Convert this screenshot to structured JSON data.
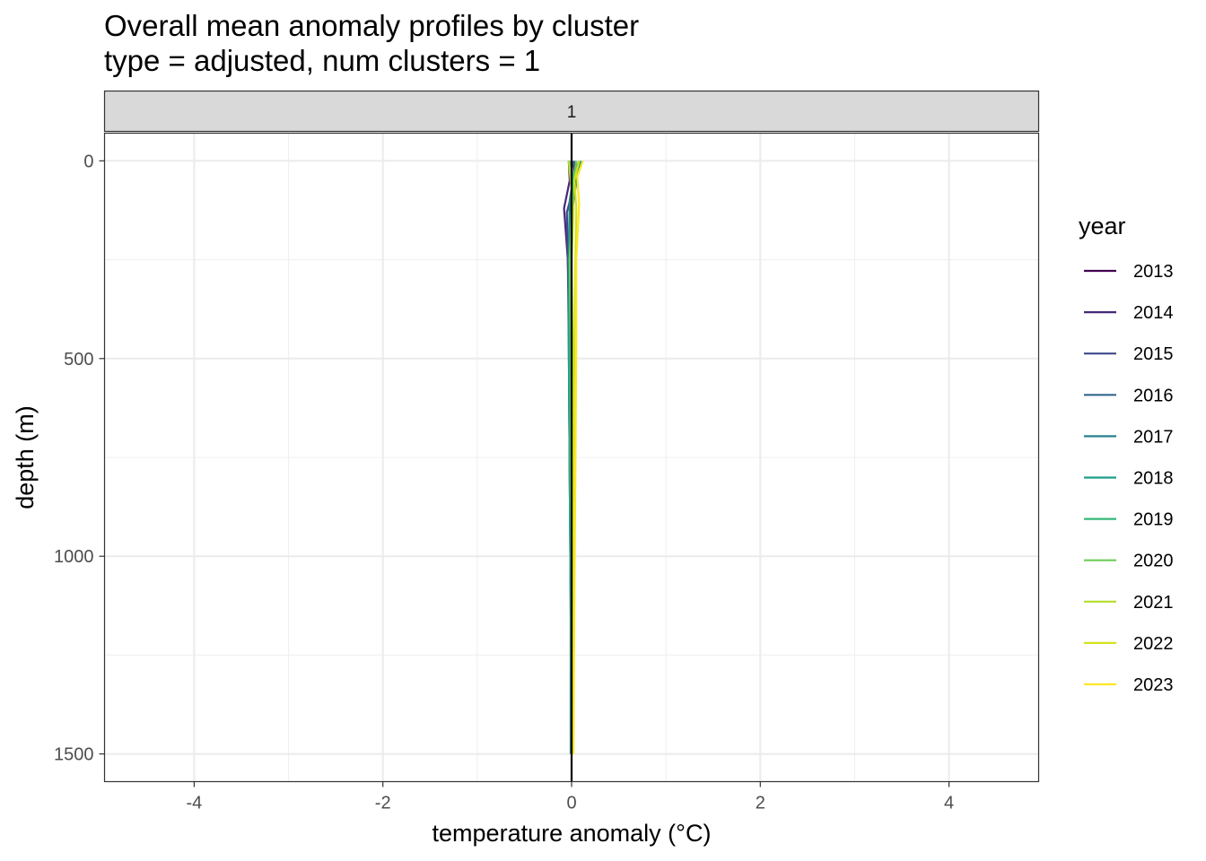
{
  "chart_data": {
    "type": "line",
    "title": "Overall mean anomaly profiles by cluster",
    "subtitle": "type = adjusted, num clusters = 1",
    "facet_label": "1",
    "xlabel": "temperature anomaly (°C)",
    "ylabel": "depth (m)",
    "xlim": [
      -4.95,
      4.95
    ],
    "ylim": [
      1570,
      -70
    ],
    "y_reversed": true,
    "x_ticks": [
      -4,
      -2,
      0,
      2,
      4
    ],
    "x_tick_labels": [
      "-4",
      "-2",
      "0",
      "2",
      "4"
    ],
    "y_ticks": [
      0,
      500,
      1000,
      1500
    ],
    "y_tick_labels": [
      "0",
      "500",
      "1000",
      "1500"
    ],
    "grid": true,
    "reference_line_x": 0,
    "legend_title": "year",
    "legend_position": "right",
    "series": [
      {
        "name": "2013",
        "color": "#440154",
        "x": [
          0.0,
          0.01,
          -0.02,
          -0.01,
          0.0,
          0.01,
          0.01,
          0.0
        ],
        "y": [
          0,
          50,
          150,
          300,
          500,
          800,
          1100,
          1500
        ]
      },
      {
        "name": "2014",
        "color": "#482878",
        "x": [
          -0.03,
          -0.02,
          -0.08,
          -0.04,
          -0.02,
          -0.01,
          0.0,
          0.0
        ],
        "y": [
          0,
          50,
          120,
          250,
          450,
          800,
          1100,
          1500
        ]
      },
      {
        "name": "2015",
        "color": "#3E4A89",
        "x": [
          0.02,
          0.04,
          -0.05,
          -0.04,
          -0.03,
          -0.02,
          -0.01,
          0.0
        ],
        "y": [
          0,
          50,
          130,
          250,
          450,
          800,
          1100,
          1500
        ]
      },
      {
        "name": "2016",
        "color": "#31688E",
        "x": [
          0.04,
          0.06,
          0.02,
          -0.01,
          -0.02,
          -0.01,
          -0.01,
          0.0
        ],
        "y": [
          0,
          40,
          100,
          250,
          450,
          800,
          1100,
          1500
        ]
      },
      {
        "name": "2017",
        "color": "#26828E",
        "x": [
          0.08,
          0.02,
          -0.02,
          -0.03,
          -0.03,
          -0.02,
          -0.01,
          -0.01
        ],
        "y": [
          0,
          40,
          100,
          250,
          450,
          800,
          1100,
          1500
        ]
      },
      {
        "name": "2018",
        "color": "#1F9E89",
        "x": [
          0.1,
          0.05,
          0.01,
          -0.02,
          -0.03,
          -0.02,
          -0.01,
          0.0
        ],
        "y": [
          0,
          50,
          110,
          250,
          450,
          800,
          1100,
          1500
        ]
      },
      {
        "name": "2019",
        "color": "#35B779",
        "x": [
          -0.01,
          0.02,
          0.0,
          -0.02,
          -0.01,
          0.0,
          0.0,
          0.0
        ],
        "y": [
          0,
          50,
          120,
          250,
          450,
          800,
          1100,
          1500
        ]
      },
      {
        "name": "2020",
        "color": "#6DCD59",
        "x": [
          0.05,
          0.03,
          0.01,
          -0.02,
          -0.01,
          -0.01,
          0.0,
          0.0
        ],
        "y": [
          0,
          40,
          100,
          250,
          450,
          800,
          1100,
          1500
        ]
      },
      {
        "name": "2021",
        "color": "#B4DE2C",
        "x": [
          -0.03,
          -0.01,
          0.02,
          0.0,
          0.01,
          0.01,
          0.0,
          0.0
        ],
        "y": [
          0,
          50,
          120,
          250,
          450,
          800,
          1100,
          1500
        ]
      },
      {
        "name": "2022",
        "color": "#D5E21B",
        "x": [
          0.08,
          0.03,
          0.05,
          0.04,
          0.03,
          0.02,
          0.01,
          0.01
        ],
        "y": [
          0,
          50,
          120,
          250,
          450,
          800,
          1100,
          1500
        ]
      },
      {
        "name": "2023",
        "color": "#FDE725",
        "x": [
          0.12,
          0.06,
          0.08,
          0.05,
          0.05,
          0.04,
          0.03,
          0.02
        ],
        "y": [
          0,
          40,
          110,
          250,
          450,
          800,
          1100,
          1500
        ]
      }
    ]
  }
}
